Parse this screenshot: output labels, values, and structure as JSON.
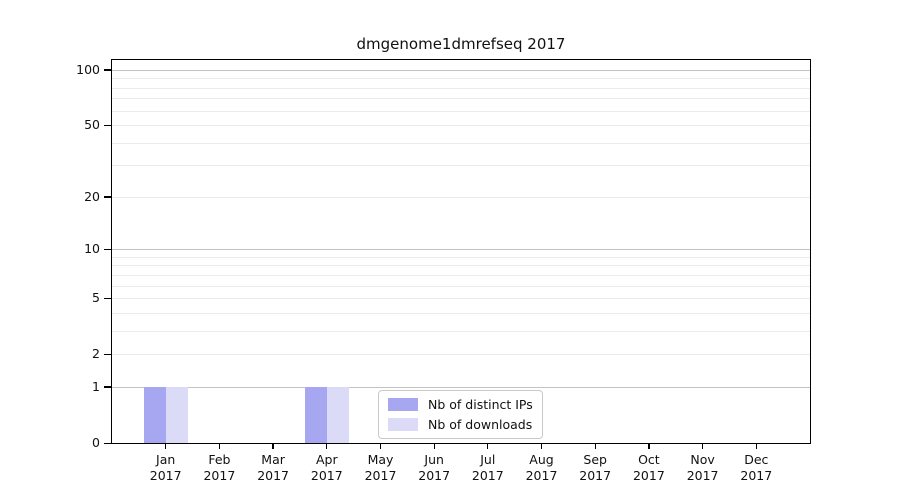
{
  "chart_data": {
    "type": "bar",
    "title": "dmgenome1dmrefseq 2017",
    "categories": [
      "Jan",
      "Feb",
      "Mar",
      "Apr",
      "May",
      "Jun",
      "Jul",
      "Aug",
      "Sep",
      "Oct",
      "Nov",
      "Dec"
    ],
    "category_year": "2017",
    "series": [
      {
        "name": "Nb of distinct IPs",
        "color": "#a6a6f1",
        "values": [
          1,
          0,
          0,
          1,
          0,
          0,
          0,
          0,
          0,
          0,
          0,
          0
        ]
      },
      {
        "name": "Nb of downloads",
        "color": "#dbdbf8",
        "values": [
          1,
          0,
          0,
          1,
          0,
          0,
          0,
          0,
          0,
          0,
          0,
          0
        ]
      }
    ],
    "xlabel": "",
    "ylabel": "",
    "y_axis": {
      "scale": "log1p",
      "tick_values": [
        0,
        1,
        2,
        5,
        10,
        20,
        50,
        100
      ],
      "major_gridlines": [
        1,
        10,
        100
      ],
      "minor_gridlines": [
        2,
        3,
        4,
        5,
        6,
        7,
        8,
        9,
        20,
        30,
        40,
        50,
        60,
        70,
        80,
        90
      ],
      "ylim": [
        0,
        113
      ]
    },
    "legend": {
      "position": "lower-center",
      "entries": [
        "Nb of distinct IPs",
        "Nb of downloads"
      ]
    },
    "grid": true
  },
  "colors": {
    "major_grid": "#c3c3c3",
    "minor_grid": "#ebebeb",
    "spine": "#000000",
    "text": "#111111",
    "background": "#ffffff",
    "legend_border": "#c9c9c9"
  }
}
